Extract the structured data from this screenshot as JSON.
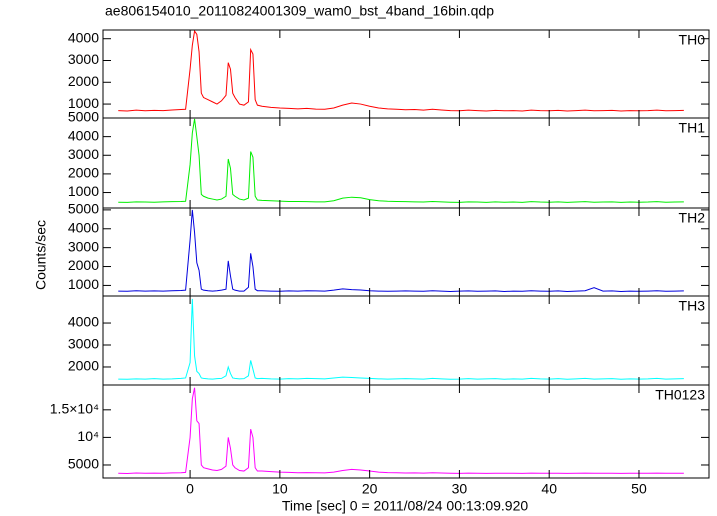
{
  "chart_data": {
    "type": "line",
    "title": "ae806154010_20110824001309_wam0_bst_4band_16bin.qdp",
    "xlabel": "Time [sec] 0 = 2011/08/24 00:13:09.920",
    "ylabel": "Counts/sec",
    "xlim": [
      -9.7,
      57.8
    ],
    "xticks": [
      0,
      10,
      20,
      30,
      40,
      50
    ],
    "x": [
      -8,
      -7,
      -6,
      -5,
      -4,
      -3,
      -2,
      -1,
      -0.5,
      0,
      0.25,
      0.5,
      0.75,
      1,
      1.25,
      1.5,
      2,
      2.5,
      3,
      3.5,
      4,
      4.25,
      4.5,
      4.75,
      5,
      5.5,
      6,
      6.5,
      6.75,
      7,
      7.25,
      7.5,
      8,
      9,
      10,
      11,
      12,
      13,
      14,
      15,
      16,
      17,
      18,
      19,
      20,
      21,
      22,
      23,
      24,
      25,
      26,
      27,
      28,
      29,
      30,
      31,
      32,
      33,
      34,
      35,
      36,
      37,
      38,
      39,
      40,
      41,
      42,
      43,
      44,
      45,
      46,
      47,
      48,
      49,
      50,
      51,
      52,
      53,
      54,
      55
    ],
    "series": [
      {
        "name": "TH0",
        "color": "#ff0000",
        "ylim": [
          360,
          4400
        ],
        "yticks": [
          1000,
          2000,
          3000,
          4000
        ],
        "values": [
          700,
          680,
          720,
          690,
          710,
          700,
          730,
          750,
          760,
          2600,
          3700,
          4350,
          4200,
          3400,
          1500,
          1300,
          1200,
          1100,
          1000,
          1150,
          1400,
          2900,
          2600,
          1500,
          1300,
          1000,
          950,
          1100,
          3500,
          3300,
          1200,
          950,
          900,
          850,
          820,
          800,
          780,
          800,
          770,
          760,
          820,
          950,
          1050,
          1000,
          900,
          820,
          780,
          760,
          740,
          750,
          720,
          760,
          730,
          700,
          690,
          720,
          700,
          680,
          710,
          690,
          700,
          680,
          720,
          700,
          690,
          710,
          680,
          700,
          720,
          690,
          700,
          710,
          680,
          700,
          690,
          700,
          720,
          690,
          700,
          710
        ]
      },
      {
        "name": "TH1",
        "color": "#00ee00",
        "ylim": [
          170,
          5000
        ],
        "yticks": [
          1000,
          2000,
          3000,
          4000,
          5000
        ],
        "values": [
          480,
          470,
          500,
          490,
          480,
          500,
          510,
          520,
          530,
          2500,
          4200,
          4950,
          4000,
          3000,
          900,
          800,
          700,
          650,
          600,
          650,
          800,
          2800,
          2300,
          900,
          800,
          650,
          600,
          700,
          3200,
          2900,
          800,
          600,
          580,
          560,
          540,
          520,
          520,
          510,
          500,
          500,
          560,
          700,
          750,
          720,
          620,
          560,
          530,
          520,
          510,
          500,
          490,
          520,
          500,
          480,
          470,
          500,
          490,
          470,
          500,
          480,
          490,
          470,
          510,
          490,
          480,
          500,
          470,
          490,
          510,
          480,
          490,
          500,
          470,
          490,
          480,
          490,
          510,
          480,
          490,
          500
        ]
      },
      {
        "name": "TH2",
        "color": "#0000dd",
        "ylim": [
          440,
          5100
        ],
        "yticks": [
          1000,
          2000,
          3000,
          4000,
          5000
        ],
        "values": [
          700,
          690,
          720,
          700,
          710,
          700,
          720,
          730,
          750,
          3400,
          5000,
          3800,
          2200,
          1800,
          800,
          750,
          720,
          700,
          720,
          750,
          800,
          2300,
          1500,
          800,
          750,
          700,
          700,
          900,
          2700,
          2000,
          800,
          720,
          720,
          700,
          690,
          710,
          700,
          720,
          710,
          700,
          750,
          820,
          780,
          760,
          720,
          700,
          690,
          700,
          710,
          700,
          690,
          720,
          700,
          680,
          700,
          710,
          690,
          700,
          710,
          680,
          700,
          690,
          720,
          700,
          690,
          710,
          680,
          700,
          720,
          880,
          700,
          710,
          680,
          700,
          690,
          700,
          720,
          690,
          700,
          710
        ]
      },
      {
        "name": "TH3",
        "color": "#00ffff",
        "ylim": [
          1180,
          5230
        ],
        "yticks": [
          2000,
          3000,
          4000
        ],
        "values": [
          1450,
          1440,
          1460,
          1450,
          1470,
          1450,
          1460,
          1480,
          1500,
          2200,
          5100,
          2500,
          1800,
          1700,
          1500,
          1480,
          1460,
          1450,
          1470,
          1480,
          1600,
          2000,
          1700,
          1500,
          1480,
          1460,
          1470,
          1600,
          2300,
          1900,
          1500,
          1470,
          1480,
          1460,
          1450,
          1470,
          1460,
          1480,
          1470,
          1460,
          1500,
          1540,
          1520,
          1500,
          1480,
          1460,
          1450,
          1460,
          1470,
          1460,
          1450,
          1480,
          1460,
          1440,
          1450,
          1470,
          1450,
          1460,
          1470,
          1440,
          1460,
          1450,
          1480,
          1460,
          1450,
          1470,
          1440,
          1460,
          1480,
          1450,
          1460,
          1470,
          1440,
          1460,
          1450,
          1460,
          1480,
          1450,
          1460,
          1470
        ]
      },
      {
        "name": "TH0123",
        "color": "#ff00ff",
        "ylim": [
          2640,
          19500
        ],
        "yticks": [
          5000,
          {
            "value": 10000,
            "label": "10⁴"
          },
          {
            "value": 15000,
            "label": "1.5×10⁴"
          }
        ],
        "values": [
          3500,
          3450,
          3550,
          3500,
          3520,
          3500,
          3560,
          3600,
          3650,
          10000,
          17000,
          19000,
          13000,
          12500,
          5000,
          4500,
          4300,
          4100,
          4000,
          4200,
          4800,
          10000,
          8000,
          5000,
          4500,
          4000,
          3900,
          4500,
          11500,
          10000,
          4500,
          3900,
          3900,
          3800,
          3700,
          3650,
          3600,
          3620,
          3580,
          3560,
          3700,
          4000,
          4200,
          4100,
          3900,
          3700,
          3620,
          3580,
          3550,
          3560,
          3520,
          3580,
          3540,
          3500,
          3480,
          3520,
          3500,
          3470,
          3510,
          3490,
          3500,
          3470,
          3520,
          3500,
          3490,
          3510,
          3470,
          3500,
          3520,
          3490,
          3500,
          3510,
          3470,
          3500,
          3490,
          3500,
          3520,
          3490,
          3500,
          3510
        ]
      }
    ]
  }
}
